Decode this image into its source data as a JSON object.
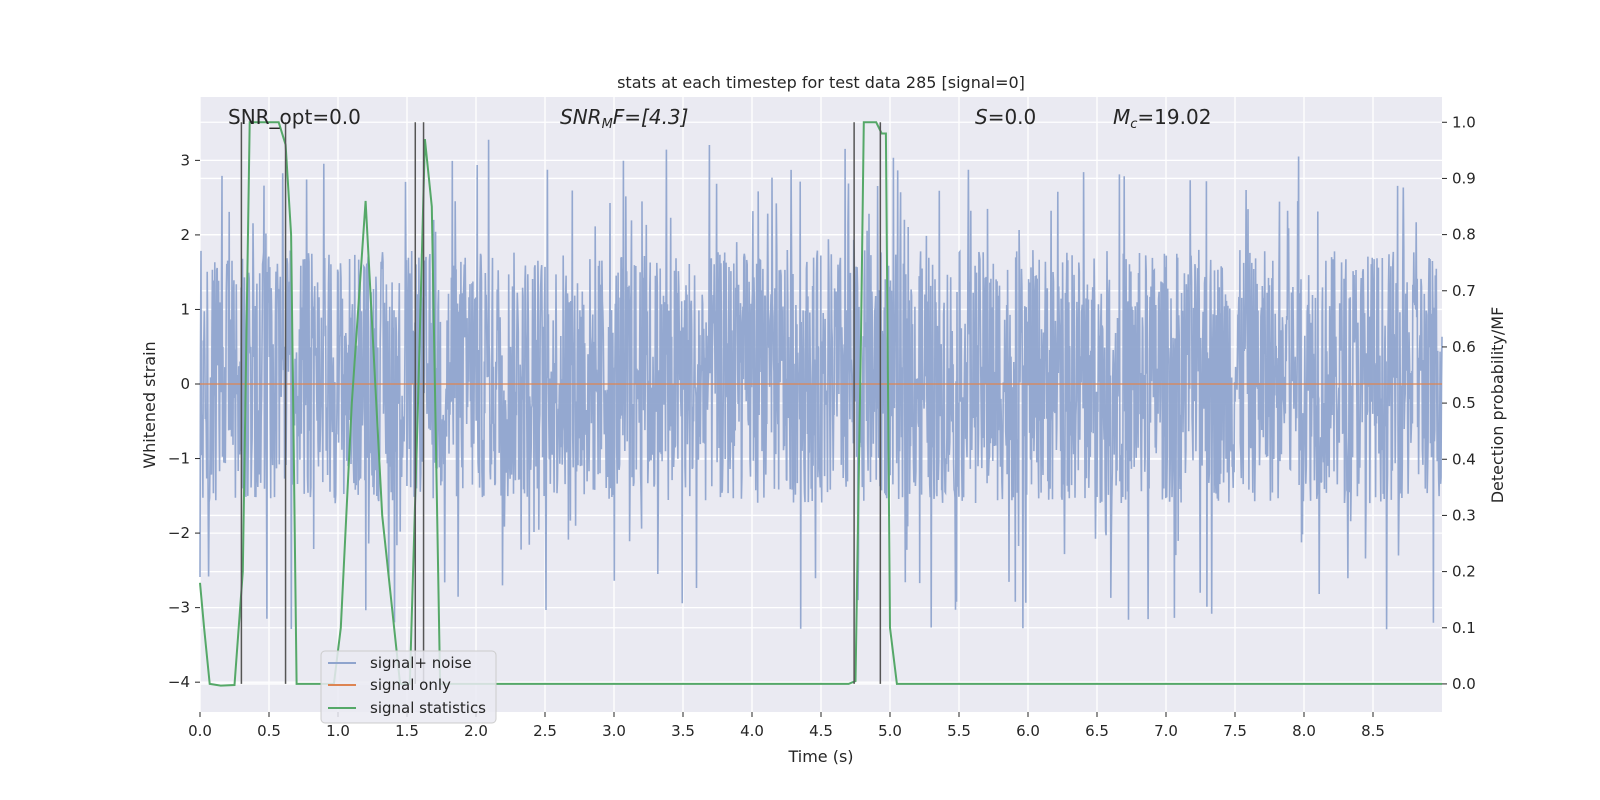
{
  "chart_data": {
    "type": "line",
    "title": "stats at each timestep for test data 285 [signal=0]",
    "xlabel": "Time (s)",
    "ylabel": "Whitened strain",
    "y2label": "Detection probability/MF",
    "xlim": [
      0,
      9.0
    ],
    "ylim": [
      -4.4,
      3.85
    ],
    "y2lim": [
      -0.05,
      1.045
    ],
    "x_ticks": [
      "0.0",
      "0.5",
      "1.0",
      "1.5",
      "2.0",
      "2.5",
      "3.0",
      "3.5",
      "4.0",
      "4.5",
      "5.0",
      "5.5",
      "6.0",
      "6.5",
      "7.0",
      "7.5",
      "8.0",
      "8.5"
    ],
    "y_ticks": [
      "3",
      "2",
      "1",
      "0",
      "−1",
      "−2",
      "−3",
      "−4"
    ],
    "y2_ticks": [
      "1.0",
      "0.9",
      "0.8",
      "0.7",
      "0.6",
      "0.5",
      "0.4",
      "0.3",
      "0.2",
      "0.1",
      "0.0"
    ],
    "grid": true,
    "legend_position": "lower-left",
    "annotations": {
      "snr_opt": "SNR_opt=0.0",
      "snr_mf_base": "SNR",
      "snr_mf_sub": "M",
      "snr_mf_rest": "F=[4.3]",
      "s_sym": "S",
      "s_rest": "=0.0",
      "mc_sym": "M",
      "mc_sub": "c",
      "mc_rest": "=19.02"
    },
    "series": [
      {
        "name": "signal+ noise",
        "color": "#8fa4cd",
        "description_values": "dense noise, mostly within [-1.8, 2.0], peaks to ~3.3 and down to ~-4.0"
      },
      {
        "name": "signal only",
        "color": "#dd8452",
        "x": [
          0,
          9.0
        ],
        "y": [
          0,
          0
        ]
      },
      {
        "name": "signal statistics",
        "color": "#55a868",
        "axis": "right",
        "x": [
          0.0,
          0.03,
          0.07,
          0.15,
          0.25,
          0.31,
          0.36,
          0.43,
          0.5,
          0.57,
          0.62,
          0.66,
          0.7,
          0.8,
          0.9,
          0.97,
          1.02,
          1.1,
          1.2,
          1.32,
          1.45,
          1.52,
          1.58,
          1.63,
          1.68,
          1.74,
          1.8,
          4.7,
          4.75,
          4.79,
          4.81,
          4.85,
          4.9,
          4.94,
          4.97,
          5.0,
          5.05,
          9.0
        ],
        "y": [
          0.18,
          0.1,
          0.0,
          -0.003,
          -0.002,
          0.2,
          1.0,
          1.0,
          1.0,
          1.0,
          0.96,
          0.8,
          0.0,
          0.0,
          0.0,
          0.0,
          0.1,
          0.5,
          0.86,
          0.3,
          0.0,
          0.0,
          0.5,
          0.97,
          0.85,
          0.0,
          0.0,
          0.0,
          0.005,
          0.62,
          1.0,
          1.0,
          1.0,
          0.98,
          0.98,
          0.1,
          0.0,
          0.0
        ]
      }
    ],
    "vlines": [
      {
        "x": 0.3,
        "y1": 0.0,
        "y2": 1.0
      },
      {
        "x": 0.62,
        "y1": 0.0,
        "y2": 1.0
      },
      {
        "x": 1.56,
        "y1": 0.0,
        "y2": 1.0
      },
      {
        "x": 1.62,
        "y1": 0.0,
        "y2": 1.0
      },
      {
        "x": 4.74,
        "y1": 0.0,
        "y2": 1.0
      },
      {
        "x": 4.93,
        "y1": 0.0,
        "y2": 1.0
      }
    ]
  },
  "colors": {
    "plot_bg": "#eaeaf2",
    "grid": "#ffffff",
    "vline": "#555555"
  }
}
